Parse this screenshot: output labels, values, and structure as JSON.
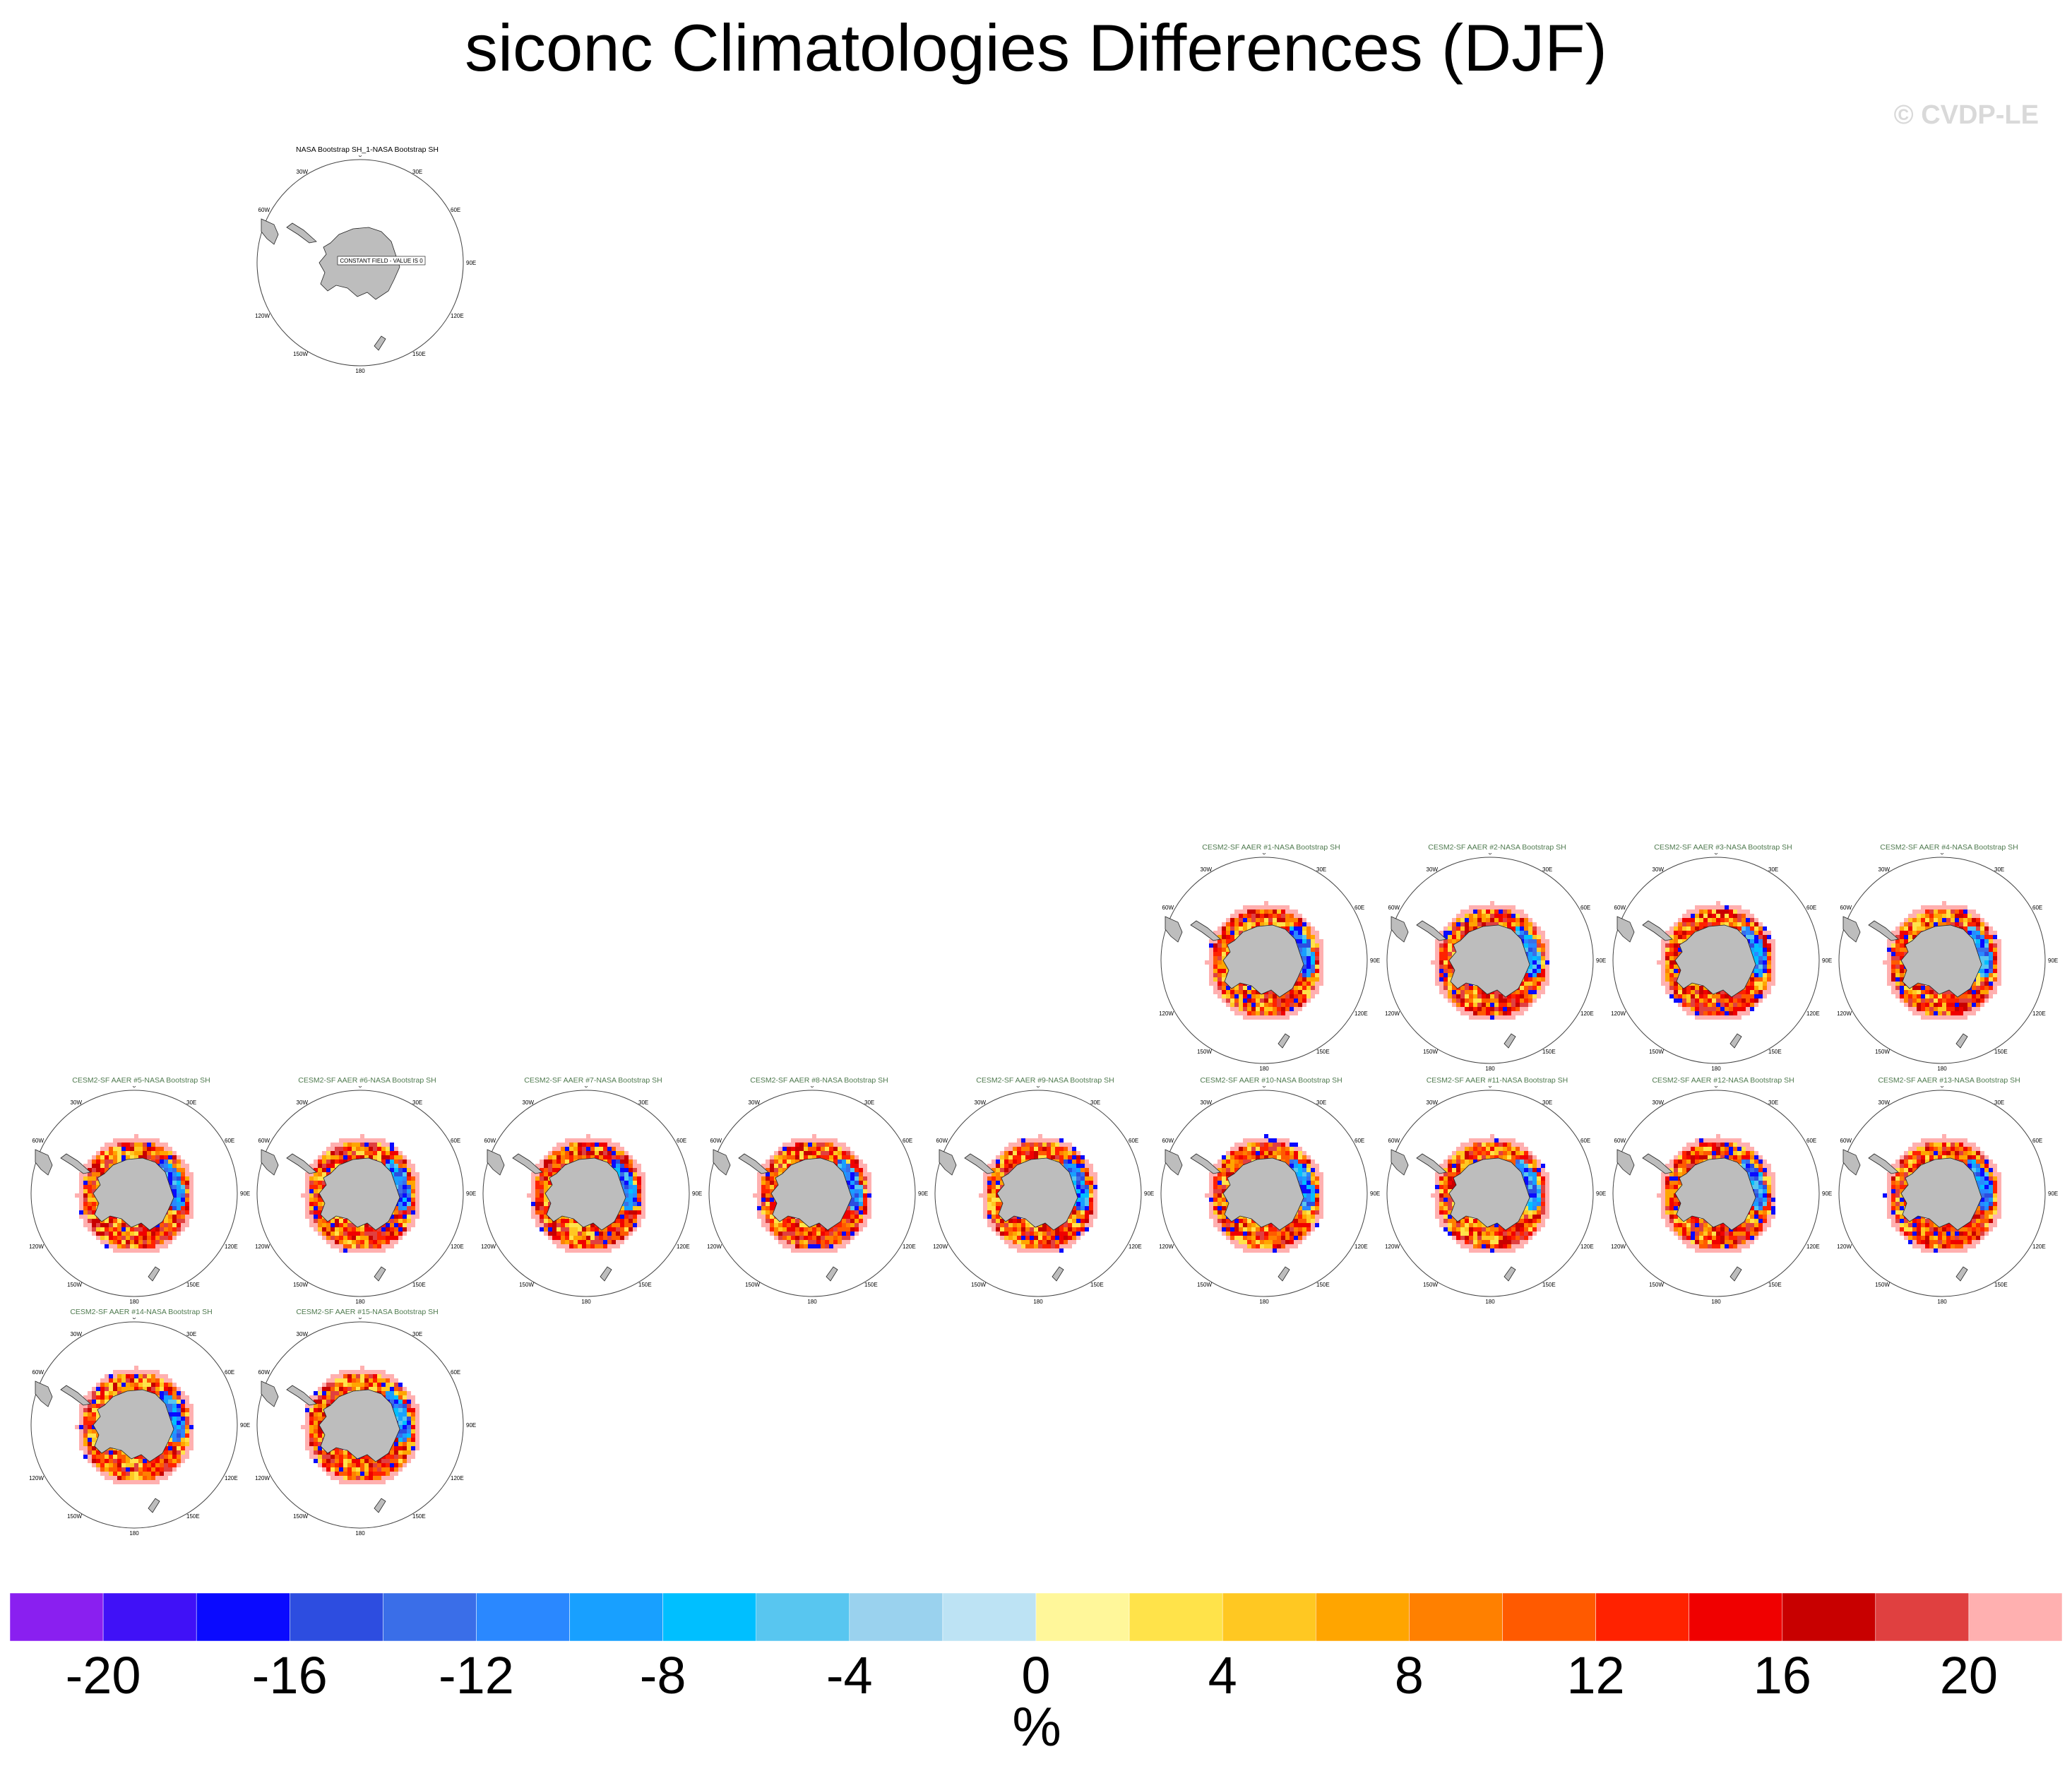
{
  "figure": {
    "title": "siconc Climatologies Differences (DJF)",
    "credit": "© CVDP-LE",
    "units": "%"
  },
  "map_labels": {
    "top": "0",
    "bottom": "180",
    "left": "90W",
    "right": "90E",
    "upper_left_1": "30W",
    "upper_left_2": "60W",
    "upper_right_1": "30E",
    "upper_right_2": "60E",
    "lower_left_1": "120W",
    "lower_left_2": "150W",
    "lower_right_1": "120E",
    "lower_right_2": "150E"
  },
  "obs_panel": {
    "title": "NASA Bootstrap SH_1-NASA Bootstrap SH",
    "note": "CONSTANT FIELD - VALUE IS 0"
  },
  "panels": [
    {
      "title": "CESM2-SF AAER #1-NASA Bootstrap SH"
    },
    {
      "title": "CESM2-SF AAER #2-NASA Bootstrap SH"
    },
    {
      "title": "CESM2-SF AAER #3-NASA Bootstrap SH"
    },
    {
      "title": "CESM2-SF AAER #4-NASA Bootstrap SH"
    },
    {
      "title": "CESM2-SF AAER #5-NASA Bootstrap SH"
    },
    {
      "title": "CESM2-SF AAER #6-NASA Bootstrap SH"
    },
    {
      "title": "CESM2-SF AAER #7-NASA Bootstrap SH"
    },
    {
      "title": "CESM2-SF AAER #8-NASA Bootstrap SH"
    },
    {
      "title": "CESM2-SF AAER #9-NASA Bootstrap SH"
    },
    {
      "title": "CESM2-SF AAER #10-NASA Bootstrap SH"
    },
    {
      "title": "CESM2-SF AAER #11-NASA Bootstrap SH"
    },
    {
      "title": "CESM2-SF AAER #12-NASA Bootstrap SH"
    },
    {
      "title": "CESM2-SF AAER #13-NASA Bootstrap SH"
    },
    {
      "title": "CESM2-SF AAER #14-NASA Bootstrap SH"
    },
    {
      "title": "CESM2-SF AAER #15-NASA Bootstrap SH"
    }
  ],
  "colorbar": {
    "colors": [
      "#8a1ff0",
      "#4011f7",
      "#0a0aff",
      "#2d4de0",
      "#3a6ee8",
      "#2a88ff",
      "#18a0ff",
      "#00bfff",
      "#58c6f0",
      "#9ad2ee",
      "#bde3f4",
      "#fff79a",
      "#ffe34a",
      "#ffc822",
      "#ffa500",
      "#ff8000",
      "#ff5a00",
      "#ff2200",
      "#f00000",
      "#c80000",
      "#e04040",
      "#ffb0b0"
    ],
    "tick_labels": [
      "-20",
      "-16",
      "-12",
      "-8",
      "-4",
      "0",
      "4",
      "8",
      "12",
      "16",
      "20"
    ],
    "range": [
      -22,
      22
    ]
  }
}
